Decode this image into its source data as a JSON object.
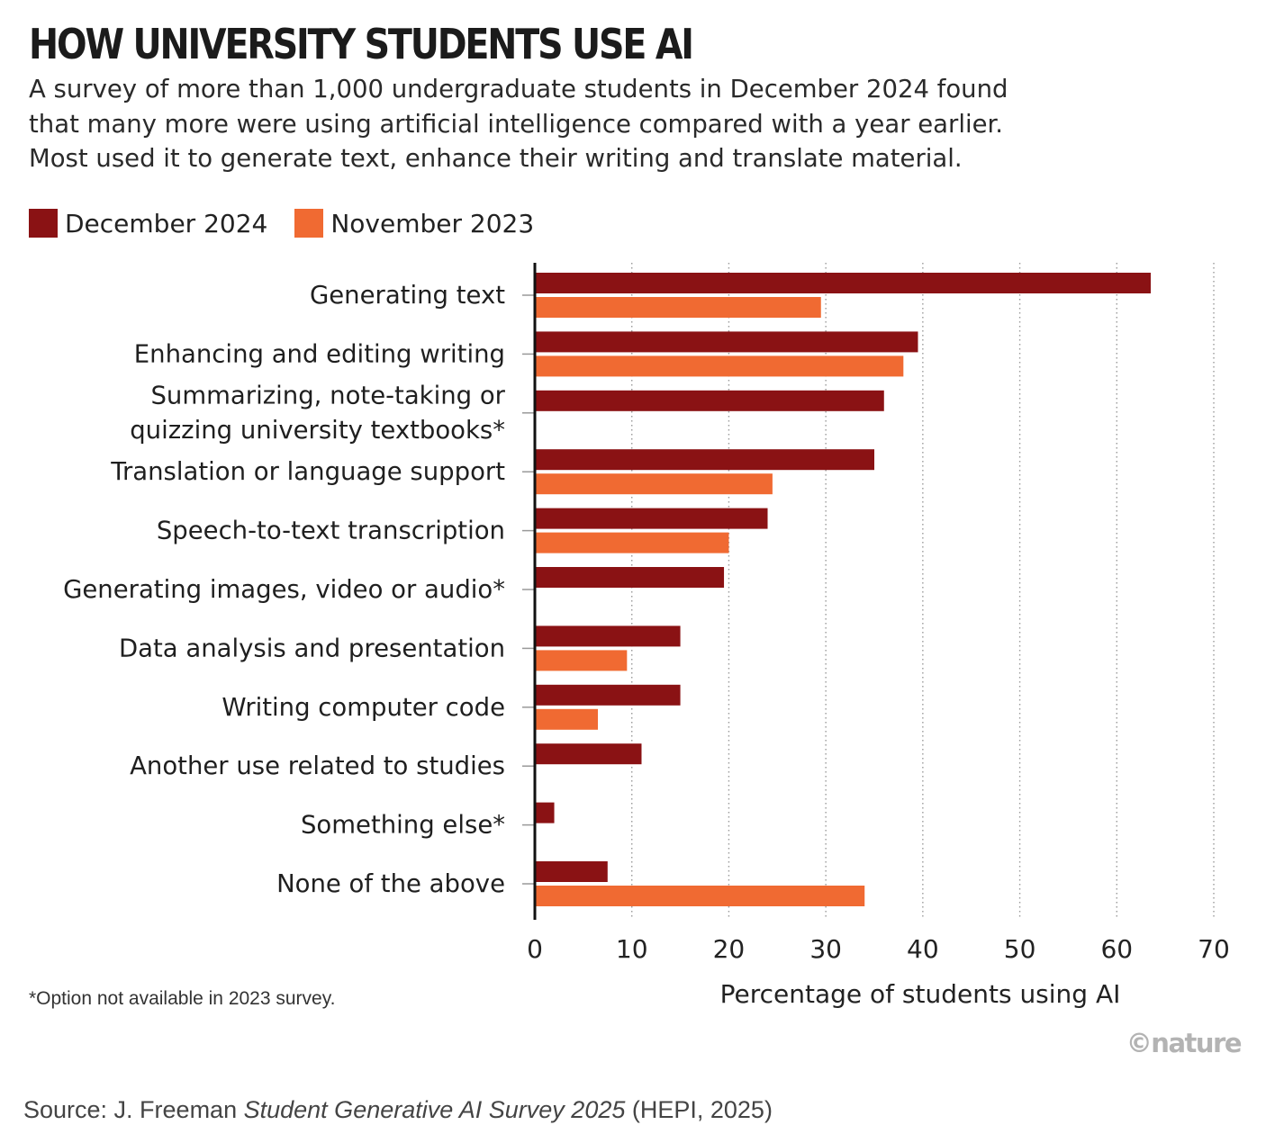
{
  "chart_data": {
    "type": "bar",
    "orientation": "horizontal",
    "title": "HOW UNIVERSITY STUDENTS USE AI",
    "subtitle_lines": [
      "A survey of more than 1,000 undergraduate students in December 2024 found",
      "that many more were using artificial intelligence compared with a year earlier.",
      "Most used it to generate text, enhance their writing and translate material."
    ],
    "categories": [
      [
        "Generating text"
      ],
      [
        "Enhancing and editing writing"
      ],
      [
        "Summarizing, note-taking or",
        "quizzing university textbooks*"
      ],
      [
        "Translation or language support"
      ],
      [
        "Speech-to-text transcription"
      ],
      [
        "Generating images, video or audio*"
      ],
      [
        "Data analysis and presentation"
      ],
      [
        "Writing computer code"
      ],
      [
        "Another use related to studies"
      ],
      [
        "Something else*"
      ],
      [
        "None of the above"
      ]
    ],
    "series": [
      {
        "name": "December 2024",
        "color": "#8a1214",
        "values": [
          63.5,
          39.5,
          36,
          35,
          24,
          19.5,
          15,
          15,
          11,
          2,
          7.5
        ]
      },
      {
        "name": "November 2023",
        "color": "#f06a32",
        "values": [
          29.5,
          38,
          null,
          24.5,
          20,
          null,
          9.5,
          6.5,
          null,
          null,
          34
        ]
      }
    ],
    "xlabel": "Percentage of students using AI",
    "ylabel": "",
    "xlim": [
      0,
      70
    ],
    "xticks": [
      0,
      10,
      20,
      30,
      40,
      50,
      60,
      70
    ],
    "grid": "vertical dotted",
    "legend": "top-left",
    "footnote": "*Option not available in 2023 survey.",
    "credit": "©nature",
    "source": {
      "prefix": "Source: J. Freeman ",
      "italic": "Student Generative AI Survey 2025",
      "suffix": " (HEPI, 2025)"
    }
  }
}
